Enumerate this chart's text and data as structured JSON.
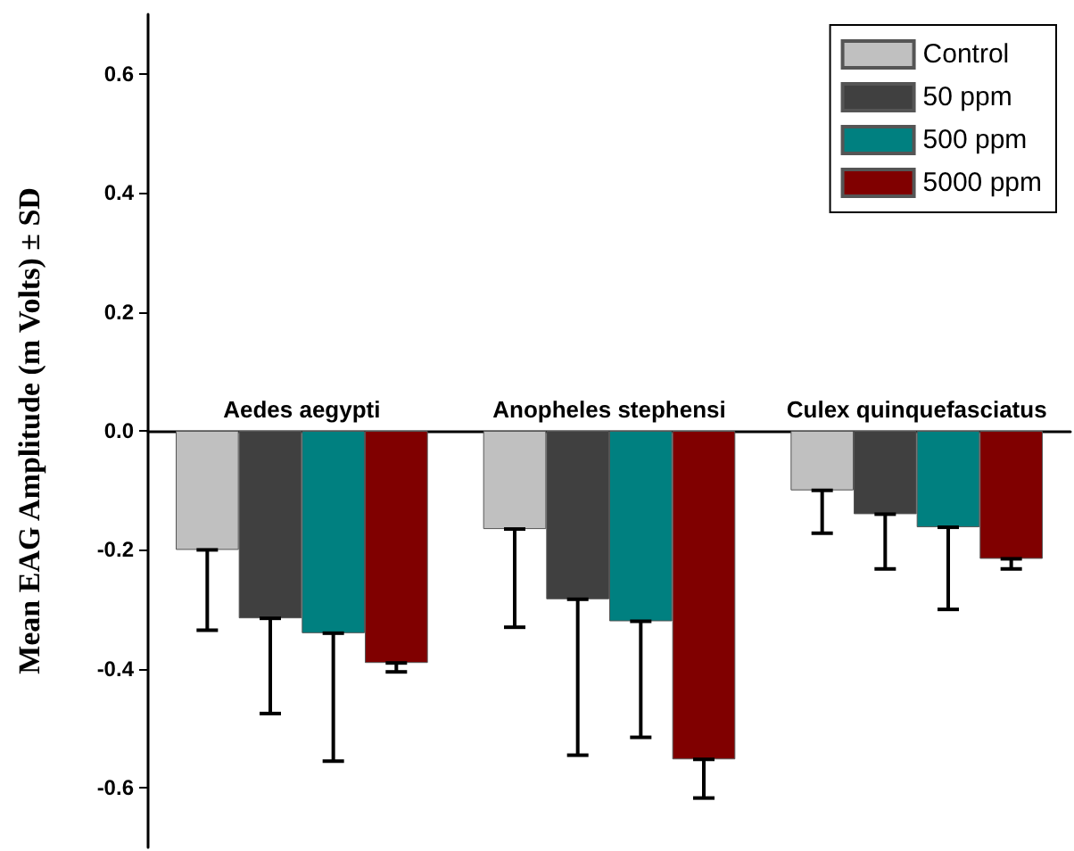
{
  "chart_data": {
    "type": "bar",
    "ylabel": "Mean EAG Amplitude (m Volts) ± SD",
    "categories": [
      "Aedes aegypti",
      "Anopheles stephensi",
      "Culex quinquefasciatus"
    ],
    "series": [
      {
        "name": "Control",
        "color": "#c0c0c0",
        "values": [
          -0.2,
          -0.165,
          -0.1
        ],
        "errors": [
          [
            -0.335,
            -0.2
          ],
          [
            -0.33,
            -0.165
          ],
          [
            -0.172,
            -0.1
          ]
        ]
      },
      {
        "name": "50 ppm",
        "color": "#404040",
        "values": [
          -0.315,
          -0.283,
          -0.14
        ],
        "errors": [
          [
            -0.475,
            -0.315
          ],
          [
            -0.545,
            -0.283
          ],
          [
            -0.232,
            -0.14
          ]
        ]
      },
      {
        "name": "500 ppm",
        "color": "#008080",
        "values": [
          -0.34,
          -0.32,
          -0.162
        ],
        "errors": [
          [
            -0.555,
            -0.34
          ],
          [
            -0.515,
            -0.32
          ],
          [
            -0.3,
            -0.162
          ]
        ]
      },
      {
        "name": "5000 ppm",
        "color": "#800000",
        "values": [
          -0.39,
          -0.552,
          -0.215
        ],
        "errors": [
          [
            -0.405,
            -0.39
          ],
          [
            -0.617,
            -0.552
          ],
          [
            -0.232,
            -0.215
          ]
        ]
      }
    ],
    "ylim": [
      -0.7,
      0.7
    ],
    "yticks": [
      -0.6,
      -0.4,
      -0.2,
      {
        "value": 0,
        "label": "0.0"
      },
      0.2,
      0.4,
      0.6
    ],
    "legend": "top right"
  }
}
